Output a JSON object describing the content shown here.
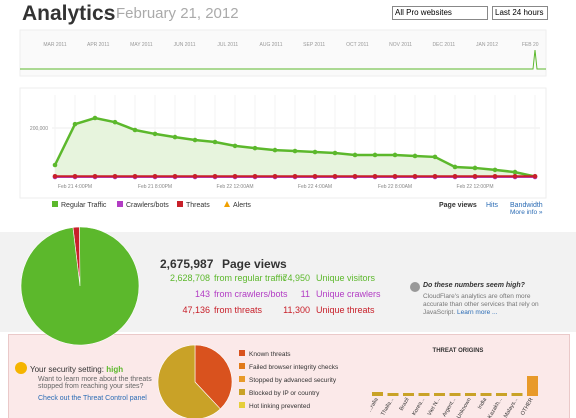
{
  "header": {
    "title": "Analytics",
    "date": "February 21, 2012",
    "site_select": "All Pro websites",
    "range_select": "Last 24 hours"
  },
  "overview": {
    "months": [
      "MAR 2011",
      "APR 2011",
      "MAY 2011",
      "JUN 2011",
      "JUL 2011",
      "AUG 2011",
      "SEP 2011",
      "OCT 2011",
      "NOV 2011",
      "DEC 2011",
      "JAN 2012",
      "FEB 20"
    ]
  },
  "chart_data": {
    "type": "line",
    "categories": [
      null,
      "Feb 21 4:00PM",
      null,
      null,
      null,
      "Feb 21 8:00PM",
      null,
      null,
      null,
      "Feb 22 12:00AM",
      null,
      null,
      null,
      "Feb 22 4:00AM",
      null,
      null,
      null,
      "Feb 22 8:00AM",
      null,
      null,
      null,
      "Feb 22 12:00PM",
      null,
      null,
      null
    ],
    "ylim": [
      0,
      335000
    ],
    "yticks": [
      {
        "value": 200000,
        "label": "200,000"
      }
    ],
    "series": [
      {
        "name": "Regular Traffic",
        "color": "#5cb82c",
        "values": [
          49000,
          216000,
          241000,
          224000,
          192000,
          176000,
          163000,
          151000,
          143000,
          127000,
          118000,
          110000,
          106000,
          102000,
          98000,
          90000,
          90000,
          90000,
          86000,
          82000,
          41000,
          37000,
          29000,
          20000,
          2000
        ]
      },
      {
        "name": "Crawlers/bots",
        "color": "#b23cc4",
        "values": [
          0,
          0,
          0,
          0,
          0,
          0,
          0,
          0,
          0,
          0,
          0,
          0,
          0,
          0,
          0,
          0,
          0,
          0,
          0,
          0,
          0,
          0,
          0,
          0,
          0
        ]
      },
      {
        "name": "Threats",
        "color": "#c8202a",
        "values": [
          3000,
          3000,
          3000,
          3000,
          3000,
          3000,
          3000,
          3000,
          3000,
          3000,
          3000,
          3000,
          3000,
          3000,
          3000,
          3000,
          3000,
          3000,
          3000,
          3000,
          3000,
          3000,
          3000,
          3000,
          3000
        ]
      }
    ],
    "alerts_label": "Alerts",
    "metrics": [
      "Page views",
      "Hits",
      "Bandwidth"
    ],
    "more_info": "More info »"
  },
  "traffic": {
    "total": {
      "value": 2675987,
      "label": "2,675,987"
    },
    "total_text": "Page views",
    "rows": [
      {
        "value": 2628708,
        "label": "2,628,708",
        "text": "from regular traffic",
        "unique": "74,950",
        "unique_text": "Unique visitors",
        "color": "#5cb82c"
      },
      {
        "value": 143,
        "label": "143",
        "text": "from crawlers/bots",
        "unique": "11",
        "unique_text": "Unique crawlers",
        "color": "#b23cc4"
      },
      {
        "value": 47136,
        "label": "47,136",
        "text": "from threats",
        "unique": "11,300",
        "unique_text": "Unique threats",
        "color": "#c8202a"
      }
    ]
  },
  "note": {
    "title": "Do these numbers seem high?",
    "body": "CloudFlare's analytics are often more accurate than other services that rely on JavaScript.",
    "link": "Learn more ..."
  },
  "security": {
    "title": "Your security setting:",
    "level": "high",
    "body": "Want to learn more about the threats stopped from reaching your sites?",
    "link": "Check out the Threat Control panel"
  },
  "threats": {
    "items": [
      {
        "name": "Known threats",
        "color": "#d9521e",
        "value": 38
      },
      {
        "name": "Failed browser integrity checks",
        "color": "#e07a1a",
        "value": 0
      },
      {
        "name": "Stopped by advanced security",
        "color": "#e89a2a",
        "value": 0
      },
      {
        "name": "Blocked by IP or country",
        "color": "#c9a227",
        "value": 62
      },
      {
        "name": "Hot linking prevented",
        "color": "#e6cf3a",
        "value": 0
      }
    ]
  },
  "origins": {
    "title": "THREAT ORIGINS",
    "countries": [
      "...ralia",
      "Thaila...",
      "Brazil",
      "Korea...",
      "Viet N...",
      "Argent...",
      "Unknown",
      "India",
      "Kazakh...",
      "Malays...",
      "OTHER"
    ],
    "values": [
      4,
      3,
      3,
      3,
      3,
      3,
      3,
      3,
      3,
      3,
      20
    ]
  }
}
